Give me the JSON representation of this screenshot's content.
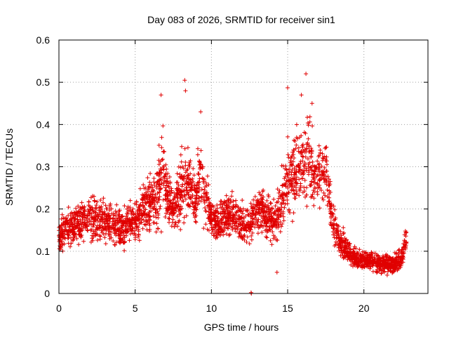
{
  "chart_data": {
    "type": "scatter",
    "title": "Day 083 of 2026, SRMTID for receiver sin1",
    "xlabel": "GPS time / hours",
    "ylabel": "SRMTID / TECUs",
    "xlim": [
      0,
      24.2
    ],
    "ylim": [
      0,
      0.6
    ],
    "xticks": [
      0,
      5,
      10,
      15,
      20
    ],
    "xtick_labels": [
      "0",
      "5",
      "10",
      "15",
      "20"
    ],
    "yticks": [
      0,
      0.1,
      0.2,
      0.3,
      0.4,
      0.5,
      0.6
    ],
    "ytick_labels": [
      "0",
      "0.1",
      "0.2",
      "0.3",
      "0.4",
      "0.5",
      "0.6"
    ],
    "grid": true,
    "marker": "plus",
    "color": "#e00000",
    "series": [
      {
        "name": "SRMTID",
        "profile": {
          "hours": [
            0.0,
            0.5,
            1.0,
            2.0,
            3.0,
            4.0,
            5.0,
            5.5,
            6.0,
            6.5,
            6.8,
            7.0,
            7.5,
            8.0,
            8.3,
            8.5,
            9.0,
            9.3,
            9.5,
            10.0,
            10.5,
            11.0,
            11.5,
            12.0,
            12.5,
            13.0,
            13.5,
            14.0,
            14.5,
            15.0,
            15.5,
            16.0,
            16.3,
            16.5,
            17.0,
            17.5,
            18.0,
            18.5,
            19.0,
            19.5,
            20.0,
            20.5,
            21.0,
            21.5,
            22.0,
            22.5,
            22.8
          ],
          "median": [
            0.14,
            0.15,
            0.16,
            0.18,
            0.17,
            0.15,
            0.17,
            0.2,
            0.22,
            0.22,
            0.28,
            0.25,
            0.2,
            0.24,
            0.28,
            0.26,
            0.22,
            0.3,
            0.24,
            0.18,
            0.16,
            0.19,
            0.18,
            0.17,
            0.16,
            0.2,
            0.19,
            0.17,
            0.2,
            0.27,
            0.28,
            0.3,
            0.32,
            0.3,
            0.28,
            0.3,
            0.16,
            0.12,
            0.1,
            0.08,
            0.08,
            0.08,
            0.07,
            0.07,
            0.07,
            0.08,
            0.14
          ],
          "spread": [
            0.04,
            0.05,
            0.05,
            0.06,
            0.06,
            0.05,
            0.05,
            0.06,
            0.07,
            0.09,
            0.12,
            0.08,
            0.06,
            0.08,
            0.12,
            0.08,
            0.07,
            0.09,
            0.08,
            0.05,
            0.05,
            0.05,
            0.05,
            0.05,
            0.05,
            0.06,
            0.06,
            0.06,
            0.07,
            0.1,
            0.1,
            0.09,
            0.12,
            0.09,
            0.08,
            0.07,
            0.05,
            0.04,
            0.03,
            0.025,
            0.025,
            0.025,
            0.025,
            0.025,
            0.025,
            0.03,
            0.04
          ]
        },
        "points_per_hour": 130,
        "x_range": [
          0,
          22.8
        ],
        "notable_points": [
          [
            6.7,
            0.47
          ],
          [
            8.25,
            0.505
          ],
          [
            8.3,
            0.48
          ],
          [
            9.3,
            0.43
          ],
          [
            15.0,
            0.487
          ],
          [
            15.9,
            0.47
          ],
          [
            16.2,
            0.52
          ],
          [
            16.6,
            0.45
          ],
          [
            14.3,
            0.05
          ],
          [
            12.6,
            0.002
          ],
          [
            12.62,
            0.0
          ]
        ]
      }
    ]
  }
}
